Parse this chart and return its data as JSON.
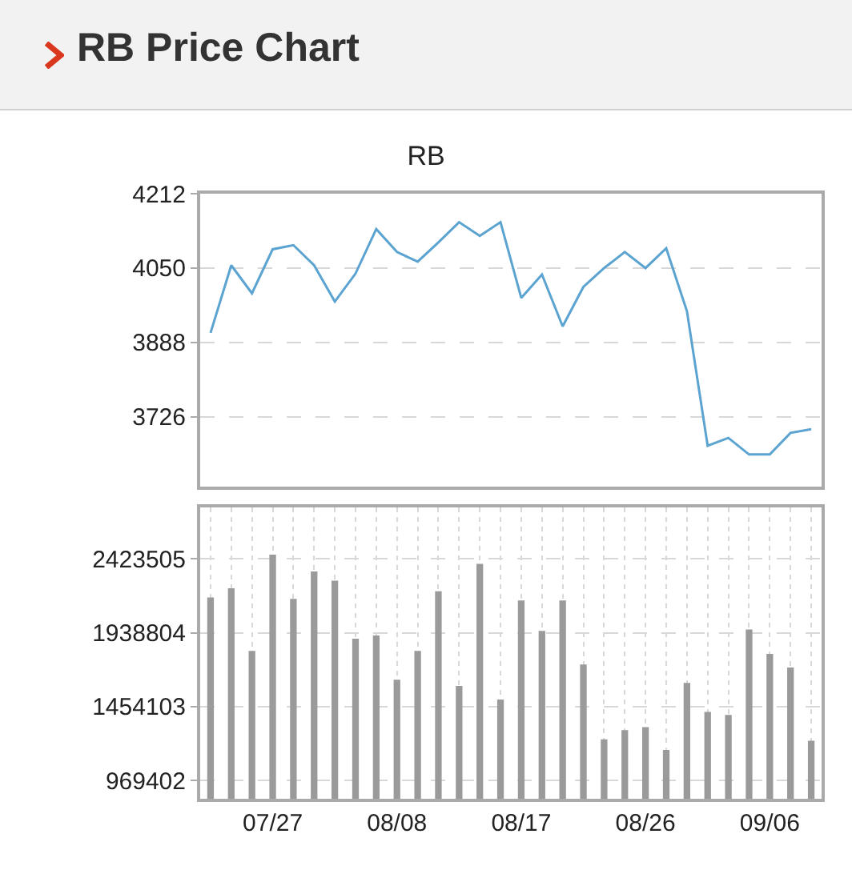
{
  "chart_data": [
    {
      "type": "line",
      "title": "RB Price Chart",
      "subtitle": "RB",
      "categories": [
        null,
        null,
        null,
        null,
        null,
        null,
        null,
        null,
        null,
        null,
        null,
        null,
        null,
        null,
        null,
        null,
        null,
        null,
        null,
        null,
        null,
        null,
        null,
        null,
        null,
        null,
        null,
        null,
        null,
        null
      ],
      "series": [
        {
          "color": "#5ba3d0",
          "values": [
            3909,
            4056,
            3995,
            4091,
            4100,
            4056,
            3977,
            4038,
            4135,
            4085,
            4064,
            4106,
            4150,
            4120,
            4150,
            3985,
            4036,
            3923,
            4009,
            4050,
            4085,
            4050,
            4093,
            3956,
            3663,
            3680,
            3644,
            3644,
            3691,
            3699
          ]
        }
      ],
      "ylim": [
        3574,
        4212
      ],
      "yticks": [
        3726,
        3888,
        4050,
        4212
      ],
      "grid": "y",
      "tick_labels": "y",
      "marker": "none",
      "line_style": "solid"
    },
    {
      "type": "bar",
      "categories": [
        null,
        null,
        null,
        "07/27",
        null,
        null,
        null,
        null,
        null,
        "08/08",
        null,
        null,
        null,
        null,
        null,
        "08/17",
        null,
        null,
        null,
        null,
        null,
        "08/26",
        null,
        null,
        null,
        null,
        null,
        "09/06",
        null,
        null
      ],
      "series": [
        {
          "color": "#9a9a9a",
          "values": [
            2170000,
            2230000,
            1820000,
            2450000,
            2160000,
            2340000,
            2280000,
            1900000,
            1920000,
            1630000,
            1820000,
            2210000,
            1590000,
            2390000,
            1500000,
            2150000,
            1950000,
            2150000,
            1730000,
            1240000,
            1300000,
            1320000,
            1170000,
            1610000,
            1420000,
            1400000,
            1960000,
            1800000,
            1710000,
            1230000
          ]
        }
      ],
      "ylim": [
        850000,
        2760000
      ],
      "yticks": [
        969402,
        1454103,
        1938804,
        2423505
      ],
      "grid": true
    }
  ]
}
